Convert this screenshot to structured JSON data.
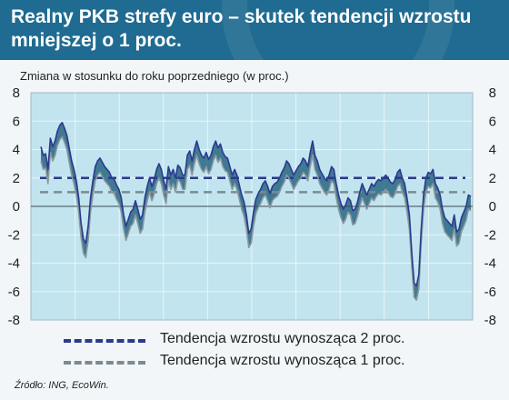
{
  "header": {
    "title": "Realny PKB strefy euro – skutek tendencji wzrostu mniejszej o 1 proc."
  },
  "chart_data": {
    "type": "area",
    "title": "Realny PKB strefy euro – skutek tendencji wzrostu mniejszej o 1 proc.",
    "subtitle": "Zmiana w stosunku do roku poprzedniego (w proc.)",
    "ylim": [
      -8,
      8
    ],
    "yticks": [
      8,
      6,
      4,
      2,
      0,
      -2,
      -4,
      -6,
      -8
    ],
    "grid": true,
    "series": [
      {
        "name": "",
        "values": [
          4.2,
          3.6,
          3.7,
          2.6,
          4.8,
          4.2,
          4.6,
          5.3,
          5.7,
          5.9,
          5.5,
          5.0,
          4.1,
          3.2,
          2.6,
          1.8,
          0.6,
          -1.2,
          -2.3,
          -2.6,
          -1.4,
          0.6,
          1.8,
          2.8,
          3.2,
          3.4,
          3.1,
          2.8,
          2.6,
          2.4,
          2.0,
          1.9,
          1.5,
          1.2,
          0.6,
          -0.6,
          -1.4,
          -0.9,
          -0.4,
          -0.2,
          0.4,
          -0.2,
          -0.9,
          -0.6,
          0.6,
          1.4,
          2.0,
          1.4,
          1.9,
          2.6,
          3.0,
          2.6,
          1.8,
          1.2,
          2.8,
          2.2,
          2.6,
          2.0,
          2.9,
          2.7,
          2.2,
          2.2,
          3.6,
          3.9,
          3.2,
          4.0,
          4.6,
          4.0,
          3.6,
          3.4,
          3.8,
          3.3,
          3.6,
          4.2,
          4.6,
          4.1,
          4.4,
          3.8,
          3.5,
          3.4,
          2.8,
          2.2,
          2.6,
          2.2,
          1.5,
          0.8,
          0.3,
          -0.6,
          -1.9,
          -1.6,
          -0.4,
          0.5,
          0.9,
          1.2,
          1.6,
          1.8,
          1.4,
          0.9,
          1.4,
          1.6,
          1.7,
          2.0,
          2.4,
          2.7,
          3.2,
          3.0,
          2.6,
          2.2,
          2.5,
          2.8,
          3.0,
          3.4,
          3.2,
          2.8,
          3.8,
          4.6,
          3.6,
          3.2,
          2.6,
          2.3,
          2.0,
          1.8,
          2.2,
          2.8,
          2.6,
          1.6,
          0.8,
          0.2,
          -0.2,
          0.1,
          0.6,
          0.4,
          -0.3,
          -0.2,
          0.3,
          1.0,
          1.6,
          1.2,
          0.8,
          1.2,
          1.6,
          1.4,
          1.7,
          1.9,
          1.8,
          2.0,
          2.2,
          2.0,
          1.7,
          1.6,
          1.9,
          2.4,
          2.6,
          2.0,
          1.6,
          0.6,
          -0.6,
          -3.2,
          -5.4,
          -5.6,
          -4.8,
          -1.6,
          0.8,
          2.0,
          2.4,
          2.3,
          2.6,
          1.6,
          1.3,
          0.8,
          -0.2,
          -0.8,
          -1.0,
          -1.2,
          -1.4,
          -0.6,
          -1.8,
          -1.6,
          -0.8,
          -0.4,
          0.0,
          0.8,
          0.7
        ]
      },
      {
        "name": "",
        "values": [
          3.2,
          2.6,
          2.7,
          1.6,
          3.8,
          3.2,
          3.6,
          4.3,
          4.7,
          4.9,
          4.5,
          4.0,
          3.1,
          2.2,
          1.6,
          0.8,
          -0.4,
          -2.2,
          -3.3,
          -3.6,
          -2.4,
          -0.4,
          0.8,
          1.8,
          2.2,
          2.4,
          2.1,
          1.8,
          1.6,
          1.4,
          1.0,
          0.9,
          0.5,
          0.2,
          -0.4,
          -1.6,
          -2.4,
          -1.9,
          -1.4,
          -1.2,
          -0.6,
          -1.2,
          -1.9,
          -1.6,
          -0.4,
          0.4,
          1.0,
          0.4,
          0.9,
          1.6,
          2.0,
          1.6,
          0.8,
          0.2,
          1.8,
          1.2,
          1.6,
          1.0,
          1.9,
          1.7,
          1.2,
          1.2,
          2.6,
          2.9,
          2.2,
          3.0,
          3.6,
          3.0,
          2.6,
          2.4,
          2.8,
          2.3,
          2.6,
          3.2,
          3.6,
          3.1,
          3.4,
          2.8,
          2.5,
          2.4,
          1.8,
          1.2,
          1.6,
          1.2,
          0.5,
          -0.2,
          -0.7,
          -1.6,
          -2.9,
          -2.6,
          -1.4,
          -0.5,
          -0.1,
          0.2,
          0.6,
          0.8,
          0.4,
          -0.1,
          0.4,
          0.6,
          0.7,
          1.0,
          1.4,
          1.7,
          2.2,
          2.0,
          1.6,
          1.2,
          1.5,
          1.8,
          2.0,
          2.4,
          2.2,
          1.8,
          2.8,
          3.6,
          2.6,
          2.2,
          1.6,
          1.3,
          1.0,
          0.8,
          1.2,
          1.8,
          1.6,
          0.6,
          -0.2,
          -0.8,
          -1.2,
          -0.9,
          -0.4,
          -0.6,
          -1.3,
          -1.2,
          -0.7,
          0.0,
          0.6,
          0.2,
          -0.2,
          0.2,
          0.6,
          0.4,
          0.7,
          0.9,
          0.8,
          1.0,
          1.2,
          1.0,
          0.7,
          0.6,
          0.9,
          1.4,
          1.6,
          1.0,
          0.6,
          -0.4,
          -1.6,
          -4.2,
          -6.4,
          -6.6,
          -5.8,
          -2.6,
          -0.2,
          1.0,
          1.4,
          1.3,
          1.6,
          0.6,
          0.3,
          -0.2,
          -1.2,
          -1.8,
          -2.0,
          -2.2,
          -2.4,
          -1.6,
          -2.8,
          -2.6,
          -1.8,
          -1.4,
          -1.0,
          -0.2,
          -0.3
        ]
      }
    ],
    "reference_lines": [
      {
        "value": 2,
        "label": "Tendencja wzrostu wynosząca 2 proc.",
        "color": "#2b3a8e"
      },
      {
        "value": 1,
        "label": "Tendencja wzrostu wynosząca 1 proc.",
        "color": "#7c8a92"
      }
    ],
    "colors": {
      "series1": "#2b3a8e",
      "series2": "#8a989e",
      "fill": "#1f5e7a",
      "plot_bg": "#c2e4ef",
      "header_bg": "#1f6b91"
    }
  },
  "legend": {
    "items": [
      {
        "label": "Tendencja wzrostu wynosząca 2 proc."
      },
      {
        "label": "Tendencja wzrostu wynosząca 1 proc."
      }
    ]
  },
  "source": "Źródło: ING, EcoWin."
}
